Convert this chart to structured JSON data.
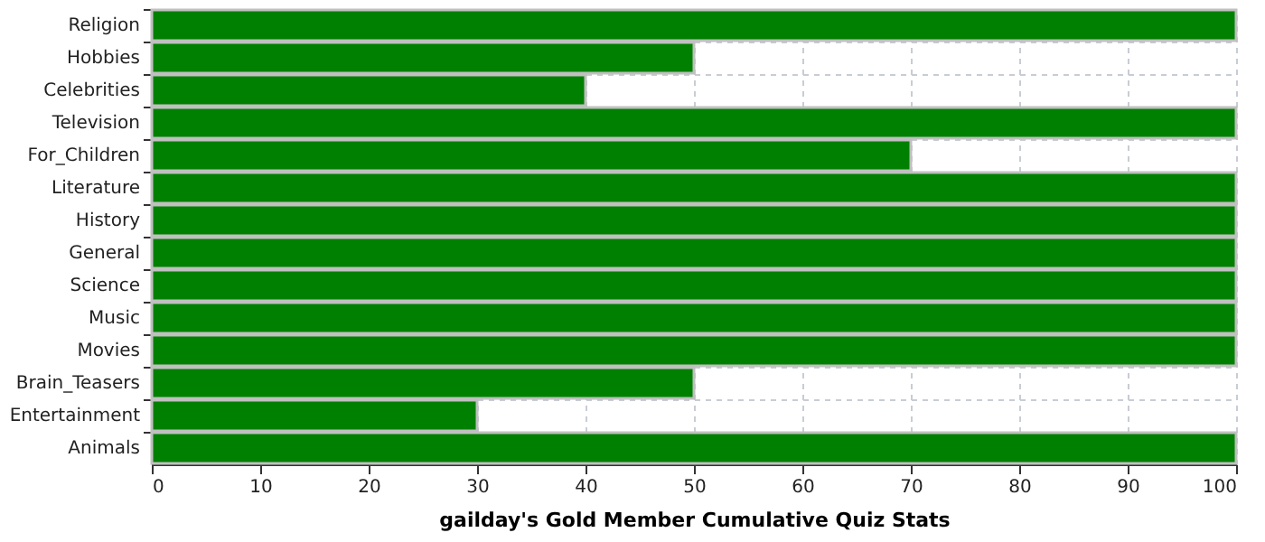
{
  "chart_data": {
    "type": "bar",
    "orientation": "horizontal",
    "categories": [
      "Religion",
      "Hobbies",
      "Celebrities",
      "Television",
      "For_Children",
      "Literature",
      "History",
      "General",
      "Science",
      "Music",
      "Movies",
      "Brain_Teasers",
      "Entertainment",
      "Animals"
    ],
    "values": [
      100,
      50,
      40,
      100,
      70,
      100,
      100,
      100,
      100,
      100,
      100,
      50,
      30,
      100
    ],
    "color": "#008000",
    "xlabel": "gailday's Gold Member Cumulative Quiz Stats",
    "xlim": [
      0,
      100
    ],
    "xticks": [
      0,
      10,
      20,
      30,
      40,
      50,
      60,
      70,
      80,
      90,
      100
    ],
    "grid": true
  }
}
